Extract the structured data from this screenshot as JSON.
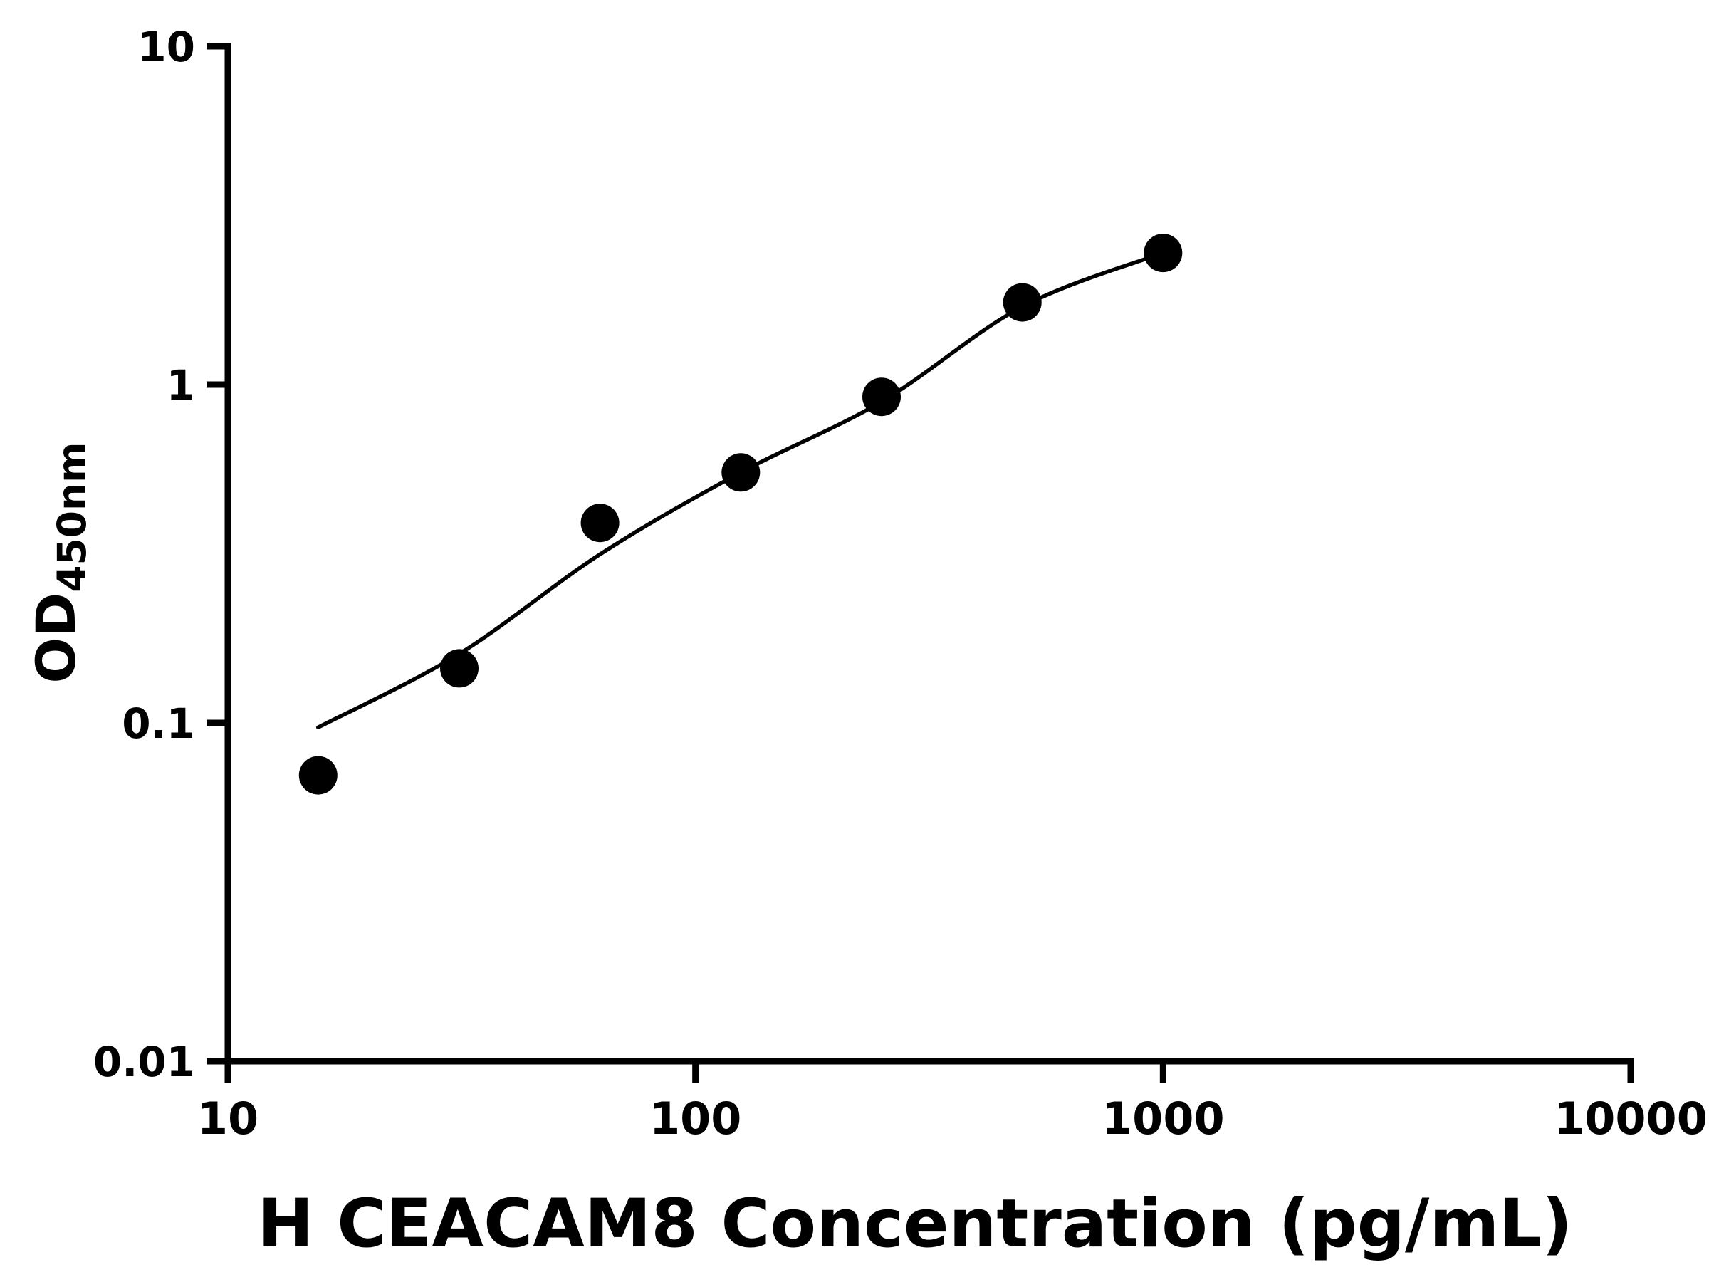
{
  "figure": {
    "background": "#ffffff"
  },
  "chart_data": {
    "type": "scatter",
    "title": "",
    "xlabel": "H CEACAM8 Concentration (pg/mL)",
    "ylabel_main": "OD",
    "ylabel_sub": "450nm",
    "x_scale": "log",
    "y_scale": "log",
    "xlim": [
      10,
      10000
    ],
    "ylim": [
      0.01,
      10
    ],
    "x_ticks": [
      10,
      100,
      1000,
      10000
    ],
    "x_tick_labels": [
      "10",
      "100",
      "1000",
      "10000"
    ],
    "y_ticks": [
      0.01,
      0.1,
      1,
      10
    ],
    "y_tick_labels": [
      "0.01",
      "0.1",
      "1",
      "10"
    ],
    "grid": false,
    "legend": "none",
    "axis_color": "#000000",
    "background": "#ffffff",
    "series": [
      {
        "name": "standard-points",
        "type": "scatter",
        "marker": "circle",
        "color": "#000000",
        "points": [
          {
            "x": 15.6,
            "y": 0.07
          },
          {
            "x": 31.25,
            "y": 0.145
          },
          {
            "x": 62.5,
            "y": 0.39
          },
          {
            "x": 125,
            "y": 0.55
          },
          {
            "x": 250,
            "y": 0.92
          },
          {
            "x": 500,
            "y": 1.75
          },
          {
            "x": 1000,
            "y": 2.45
          }
        ]
      },
      {
        "name": "fit-curve",
        "type": "line",
        "color": "#000000",
        "points": [
          {
            "x": 15.6,
            "y": 0.097
          },
          {
            "x": 31.25,
            "y": 0.16
          },
          {
            "x": 62.5,
            "y": 0.315
          },
          {
            "x": 125,
            "y": 0.55
          },
          {
            "x": 250,
            "y": 0.89
          },
          {
            "x": 500,
            "y": 1.7
          },
          {
            "x": 1000,
            "y": 2.45
          }
        ]
      }
    ]
  }
}
